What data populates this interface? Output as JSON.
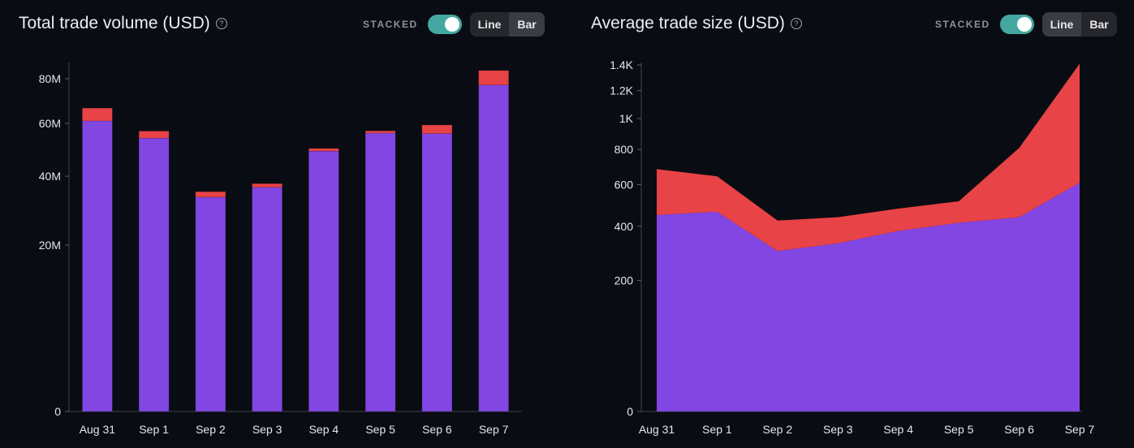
{
  "colors": {
    "primary": "#8246e3",
    "secondary": "#e84346",
    "toggle_on": "#44a8a0"
  },
  "chart_data": [
    {
      "type": "bar",
      "title": "Total trade volume (USD)",
      "stacked": true,
      "controls": {
        "stacked_label": "STACKED",
        "line_label": "Line",
        "bar_label": "Bar",
        "active": "Bar"
      },
      "categories": [
        "Aug 31",
        "Sep 1",
        "Sep 2",
        "Sep 3",
        "Sep 4",
        "Sep 5",
        "Sep 6",
        "Sep 7"
      ],
      "series": [
        {
          "values": [
            61000000,
            54000000,
            33200000,
            36300000,
            49000000,
            56000000,
            55800000,
            77000000
          ]
        },
        {
          "values": [
            5500000,
            2800000,
            1700000,
            1200000,
            1000000,
            900000,
            3500000,
            7000000
          ]
        }
      ],
      "y_ticks": [
        {
          "value": 0,
          "label": "0"
        },
        {
          "value": 20000000,
          "label": "20M"
        },
        {
          "value": 40000000,
          "label": "40M"
        },
        {
          "value": 60000000,
          "label": "60M"
        },
        {
          "value": 80000000,
          "label": "80M"
        }
      ],
      "ylim": [
        0,
        88000000
      ],
      "y_scale": "sqrt",
      "grid": false
    },
    {
      "type": "area",
      "title": "Average trade size (USD)",
      "stacked": true,
      "controls": {
        "stacked_label": "STACKED",
        "line_label": "Line",
        "bar_label": "Bar",
        "active": "Line"
      },
      "categories": [
        "Aug 31",
        "Sep 1",
        "Sep 2",
        "Sep 3",
        "Sep 4",
        "Sep 5",
        "Sep 6",
        "Sep 7"
      ],
      "series": [
        {
          "values": [
            450,
            465,
            300,
            330,
            380,
            415,
            440,
            610
          ]
        },
        {
          "values": [
            235,
            180,
            125,
            110,
            100,
            100,
            370,
            800
          ]
        }
      ],
      "y_ticks": [
        {
          "value": 0,
          "label": "0"
        },
        {
          "value": 200,
          "label": "200"
        },
        {
          "value": 400,
          "label": "400"
        },
        {
          "value": 600,
          "label": "600"
        },
        {
          "value": 800,
          "label": "800"
        },
        {
          "value": 1000,
          "label": "1K"
        },
        {
          "value": 1200,
          "label": "1.2K"
        },
        {
          "value": 1400,
          "label": "1.4K"
        }
      ],
      "ylim": [
        0,
        1420
      ],
      "y_scale": "sqrt",
      "grid": false
    }
  ]
}
